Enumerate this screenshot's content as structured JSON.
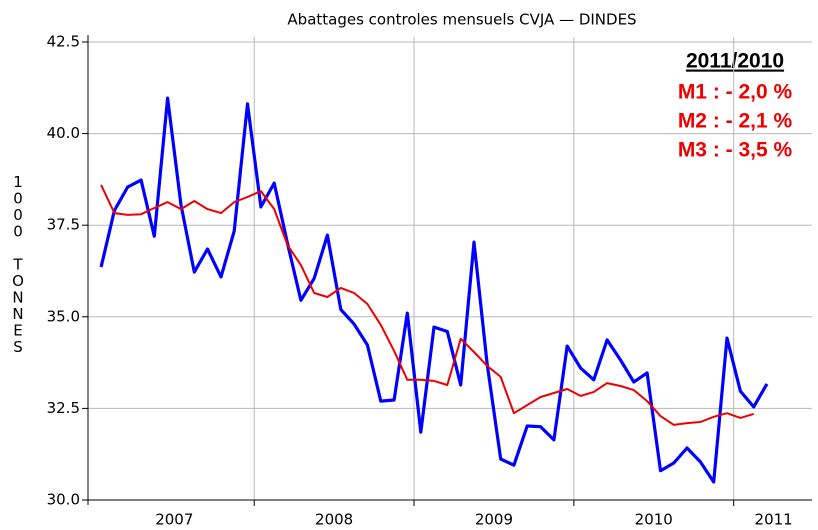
{
  "chart_data": {
    "type": "line",
    "title": "Abattages controles mensuels CVJA — DINDES",
    "y_label": "1000 TONNES",
    "annotations": [
      "2011/2010",
      "M1 : - 2,0 %",
      "M2 : - 2,1 %",
      "M3 : - 3,5 %"
    ],
    "x": [
      2007.042,
      2007.125,
      2007.208,
      2007.292,
      2007.375,
      2007.458,
      2007.542,
      2007.625,
      2007.708,
      2007.792,
      2007.875,
      2007.958,
      2008.042,
      2008.125,
      2008.208,
      2008.292,
      2008.375,
      2008.458,
      2008.542,
      2008.625,
      2008.708,
      2008.792,
      2008.875,
      2008.958,
      2009.042,
      2009.125,
      2009.208,
      2009.292,
      2009.375,
      2009.458,
      2009.542,
      2009.625,
      2009.708,
      2009.792,
      2009.875,
      2009.958,
      2010.042,
      2010.125,
      2010.208,
      2010.292,
      2010.375,
      2010.458,
      2010.542,
      2010.625,
      2010.708,
      2010.792,
      2010.875,
      2010.958,
      2011.042,
      2011.125,
      2011.208
    ],
    "series": [
      {
        "color": "#0000ff",
        "width": 3.2,
        "values": [
          36.36,
          37.9,
          38.54,
          38.73,
          37.2,
          40.97,
          38.05,
          36.22,
          36.85,
          36.09,
          37.34,
          40.81,
          38.0,
          38.65,
          37.0,
          35.45,
          36.05,
          37.23,
          35.2,
          34.8,
          34.23,
          32.7,
          32.73,
          35.1,
          31.85,
          34.72,
          34.6,
          33.14,
          37.04,
          33.7,
          31.12,
          30.95,
          32.02,
          32.0,
          31.64,
          34.2,
          33.6,
          33.28,
          34.37,
          33.82,
          33.22,
          33.47,
          30.8,
          31.01,
          31.42,
          31.04,
          30.49,
          34.42,
          32.97,
          32.54,
          33.17
        ]
      },
      {
        "color": "#ee0000",
        "width": 2,
        "values": [
          38.6,
          37.83,
          37.78,
          37.8,
          37.97,
          38.13,
          37.94,
          38.16,
          37.94,
          37.83,
          38.13,
          38.27,
          38.43,
          37.94,
          36.96,
          36.41,
          35.65,
          35.54,
          35.79,
          35.65,
          35.35,
          34.78,
          34.07,
          33.28,
          33.28,
          33.25,
          33.14,
          34.4,
          34.04,
          33.66,
          33.36,
          32.37,
          32.59,
          32.81,
          32.92,
          33.03,
          32.84,
          32.95,
          33.19,
          33.11,
          33.0,
          32.7,
          32.29,
          32.05,
          32.1,
          32.13,
          32.27,
          32.37,
          32.24,
          32.35,
          null
        ]
      }
    ],
    "xlim": [
      2006.96,
      2011.49
    ],
    "xticks": [
      {
        "value": 2007.5,
        "label": "2007"
      },
      {
        "value": 2008.5,
        "label": "2008"
      },
      {
        "value": 2009.5,
        "label": "2009"
      },
      {
        "value": 2010.5,
        "label": "2010"
      },
      {
        "value": 2011.25,
        "label": "2011"
      }
    ],
    "xgrid": [
      2008,
      2009,
      2010,
      2011
    ],
    "ylim": [
      30,
      42.5
    ],
    "yticks": [
      {
        "value": 30,
        "label": "30.0"
      },
      32.5,
      {
        "value": 35,
        "label": "35.0"
      },
      37.5,
      {
        "value": 40,
        "label": "40.0"
      },
      42.5
    ],
    "grid": true
  }
}
